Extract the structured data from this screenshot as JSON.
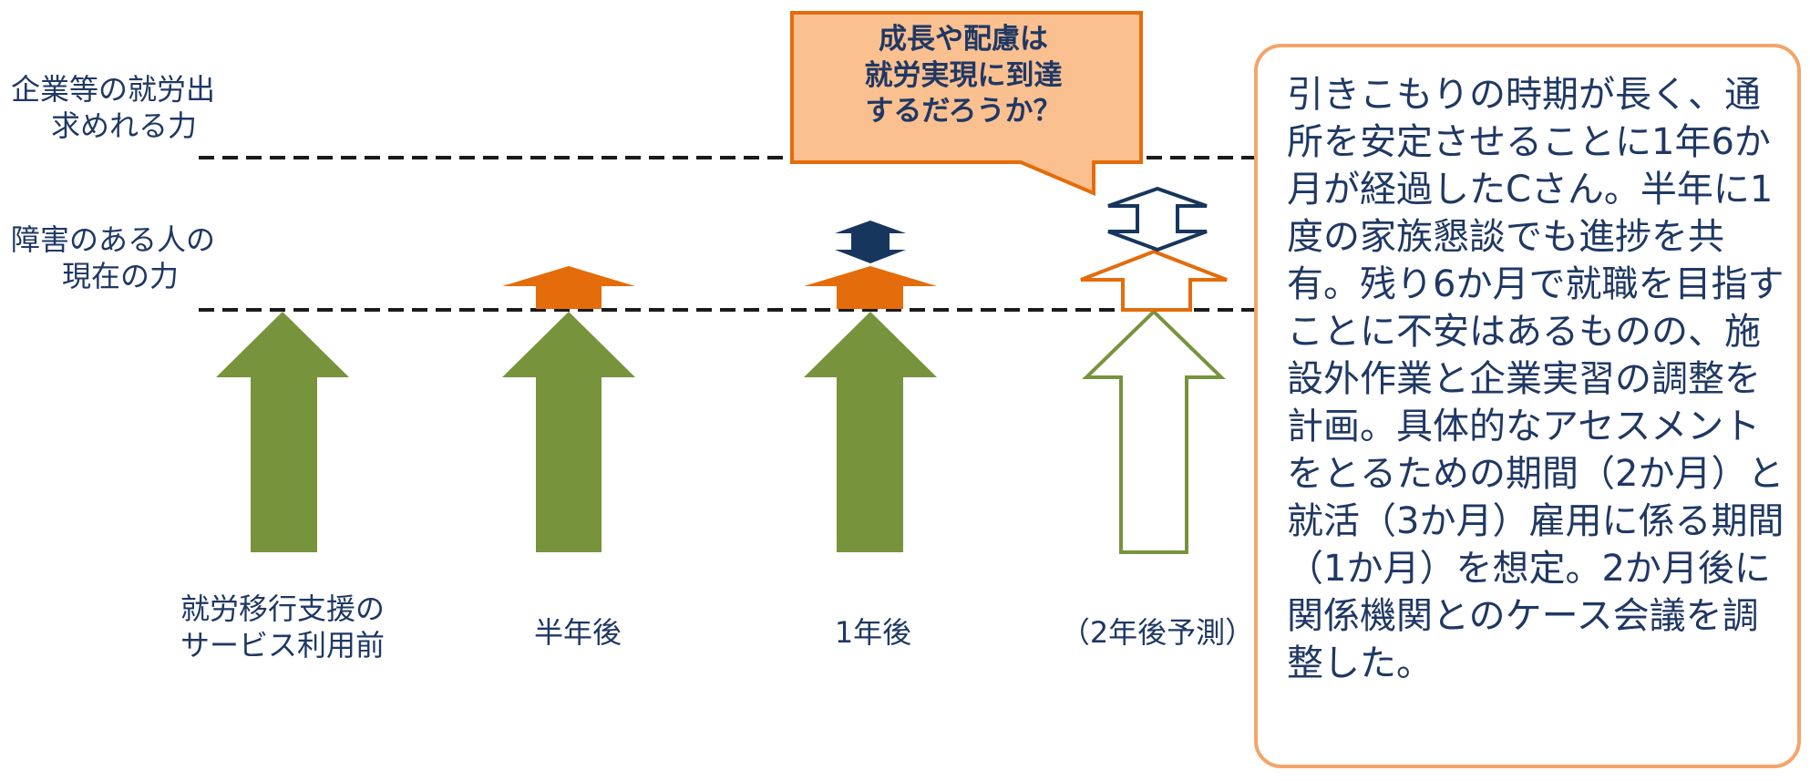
{
  "levels": {
    "required": "企業等の就労出\n求めれる力",
    "current": "障害のある人の\n現在の力"
  },
  "stages": [
    {
      "label": "就労移行支援の\nサービス利用前"
    },
    {
      "label": "半年後"
    },
    {
      "label": "1年後"
    },
    {
      "label": "（2年後予測）"
    }
  ],
  "callout": {
    "text": "成長や配慮は\n就労実現に到達\nするだろうか？"
  },
  "note": {
    "text": "引きこもりの時期が長く、通所を安定させることに1年6か月が経過したCさん。半年に1度の家族懇談でも進捗を共有。残り6か月で就職を目指すことに不安はあるものの、施設外作業と企業実習の調整を計画。具体的なアセスメントをとるための期間（2か月）と就活（3か月）雇用に係る期間（1か月）を想定。2か月後に関係機関とのケース会議を調整した。"
  },
  "colors": {
    "text": "#1f3864",
    "green": "#77933c",
    "orange": "#e46c0a",
    "navy": "#17365d",
    "callout_fill": "#fac090",
    "callout_border": "#e46c0a",
    "note_border": "#f4a46a",
    "dash": "#1a1a1a"
  }
}
